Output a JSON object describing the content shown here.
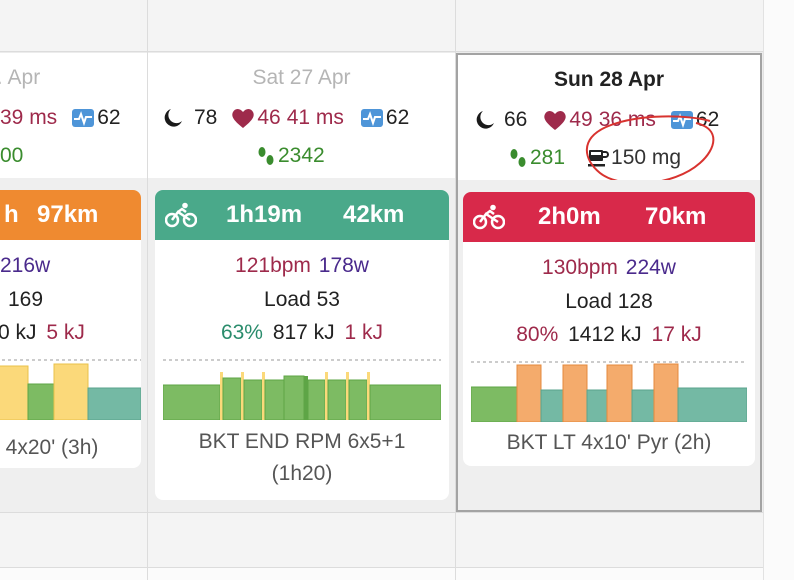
{
  "days": [
    {
      "date": "Apr",
      "hrv_ms": "39 ms",
      "resting": "62",
      "steps": "00",
      "workout": {
        "duration": "h",
        "distance": "97km",
        "watts": "216w",
        "load": "169",
        "energy_kj": "0 kJ",
        "energy2_kj": "5 kJ",
        "title": "4x20' (3h)",
        "color": "#ef8a30"
      }
    },
    {
      "date": "Sat 27 Apr",
      "sleep": "78",
      "hr": "46",
      "hrv_ms": "41 ms",
      "resting": "62",
      "steps": "2342",
      "workout": {
        "duration": "1h19m",
        "distance": "42km",
        "bpm": "121bpm",
        "watts": "178w",
        "load": "Load 53",
        "pct": "63%",
        "energy_kj": "817 kJ",
        "energy2_kj": "1 kJ",
        "title_line1": "BKT END RPM 6x5+1",
        "title_line2": "(1h20)",
        "color": "#4aa98a"
      }
    },
    {
      "date": "Sun 28 Apr",
      "sleep": "66",
      "hr": "49",
      "hrv_ms": "36 ms",
      "resting": "62",
      "steps": "281",
      "caffeine": "150 mg",
      "workout": {
        "duration": "2h0m",
        "distance": "70km",
        "bpm": "130bpm",
        "watts": "224w",
        "load": "Load 128",
        "pct": "80%",
        "energy_kj": "1412 kJ",
        "energy2_kj": "17 kJ",
        "title": "BKT LT 4x10' Pyr (2h)",
        "color": "#d8294a"
      }
    }
  ],
  "colors": {
    "zone_green": "#7dbb63",
    "zone_teal": "#74b9a4",
    "zone_yellow": "#fbd97a",
    "zone_orange": "#f4ab6c",
    "annotation": "#d8332f"
  },
  "icons": {
    "sleep": "moon-icon",
    "hr": "heart-icon",
    "hrv": "hrv-icon",
    "steps": "footsteps-icon",
    "caffeine": "coffee-cup-icon",
    "activity": "bike-icon"
  }
}
